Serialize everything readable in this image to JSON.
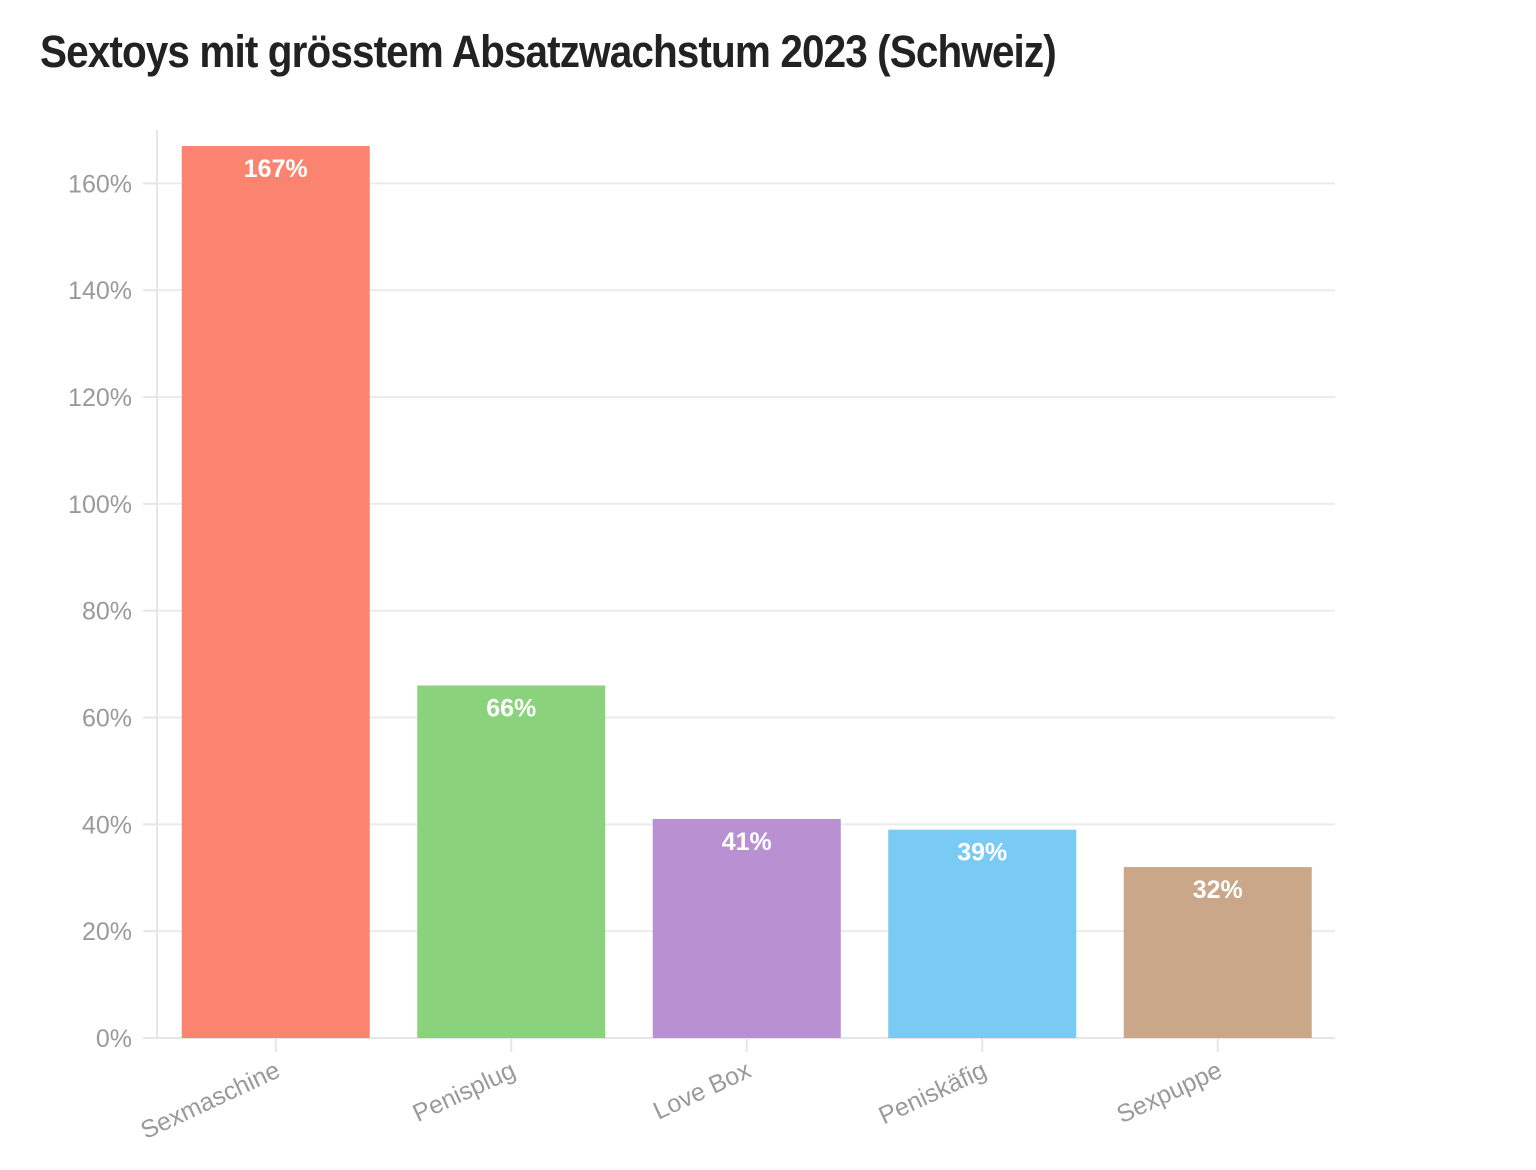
{
  "chart_data": {
    "type": "bar",
    "title": "Sextoys mit grösstem Absatzwachstum 2023 (Schweiz)",
    "categories": [
      "Sexmaschine",
      "Penisplug",
      "Love Box",
      "Peniskäfig",
      "Sexpuppe"
    ],
    "values": [
      167,
      66,
      41,
      39,
      32
    ],
    "value_labels": [
      "167%",
      "66%",
      "41%",
      "39%",
      "32%"
    ],
    "colors": [
      "#fa8470",
      "#8ad37c",
      "#b990d1",
      "#7acbf3",
      "#c9a788"
    ],
    "ylim": [
      0,
      170
    ],
    "yticks": [
      0,
      20,
      40,
      60,
      80,
      100,
      120,
      140,
      160
    ],
    "ytick_labels": [
      "0%",
      "20%",
      "40%",
      "60%",
      "80%",
      "100%",
      "120%",
      "140%",
      "160%"
    ],
    "xlabel": "",
    "ylabel": "",
    "grid": true,
    "legend": "none"
  }
}
